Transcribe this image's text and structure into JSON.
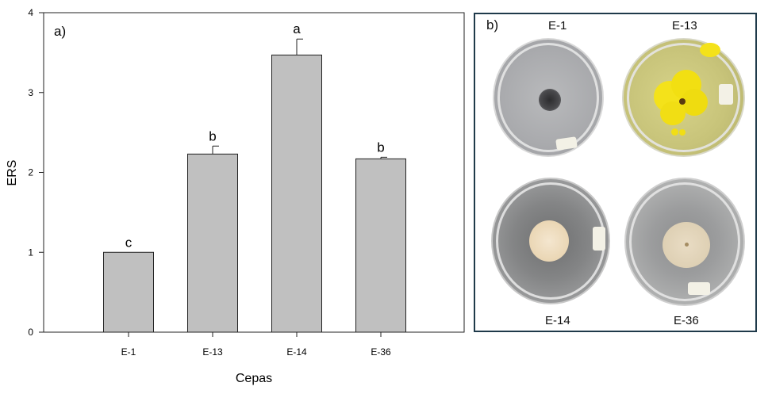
{
  "chart_data": {
    "type": "bar",
    "panel_label": "a)",
    "xlabel": "Cepas",
    "ylabel": "ERS",
    "ylim": [
      0,
      4
    ],
    "yticks": [
      0,
      1,
      2,
      3,
      4
    ],
    "categories": [
      "E-1",
      "E-13",
      "E-14",
      "E-36"
    ],
    "values": [
      1.0,
      2.23,
      3.47,
      2.17
    ],
    "errors": [
      0.0,
      0.1,
      0.2,
      0.02
    ],
    "significance_letters": [
      "c",
      "b",
      "a",
      "b"
    ],
    "bar_color": "#c0c0c0",
    "grid": false
  },
  "panel_b": {
    "label": "b)",
    "plates": [
      {
        "label": "E-1"
      },
      {
        "label": "E-13"
      },
      {
        "label": "E-14"
      },
      {
        "label": "E-36"
      }
    ]
  }
}
